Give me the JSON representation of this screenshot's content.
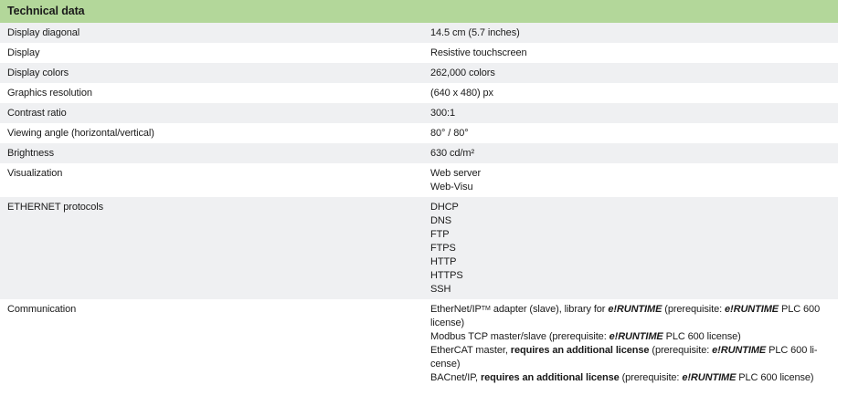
{
  "table": {
    "title": "Technical data",
    "rows": [
      {
        "label": "Display diagonal",
        "value_lines": [
          [
            {
              "t": "14.5 cm (5.7 inches)"
            }
          ]
        ]
      },
      {
        "label": "Display",
        "value_lines": [
          [
            {
              "t": "Resistive touchscreen"
            }
          ]
        ]
      },
      {
        "label": "Display colors",
        "value_lines": [
          [
            {
              "t": "262,000 colors"
            }
          ]
        ]
      },
      {
        "label": "Graphics resolution",
        "value_lines": [
          [
            {
              "t": "(640 x 480) px"
            }
          ]
        ]
      },
      {
        "label": "Contrast ratio",
        "value_lines": [
          [
            {
              "t": "300:1"
            }
          ]
        ]
      },
      {
        "label": "Viewing angle (horizontal/vertical)",
        "value_lines": [
          [
            {
              "t": "80° / 80°"
            }
          ]
        ]
      },
      {
        "label": "Brightness",
        "value_lines": [
          [
            {
              "t": "630 cd/m²"
            }
          ]
        ]
      },
      {
        "label": "Visualization",
        "value_lines": [
          [
            {
              "t": "Web server"
            }
          ],
          [
            {
              "t": "Web-Visu"
            }
          ]
        ]
      },
      {
        "label": "ETHERNET protocols",
        "value_lines": [
          [
            {
              "t": "DHCP"
            }
          ],
          [
            {
              "t": "DNS"
            }
          ],
          [
            {
              "t": "FTP"
            }
          ],
          [
            {
              "t": "FTPS"
            }
          ],
          [
            {
              "t": "HTTP"
            }
          ],
          [
            {
              "t": "HTTPS"
            }
          ],
          [
            {
              "t": "SSH"
            }
          ]
        ]
      },
      {
        "label": "Communication",
        "value_lines": [
          [
            {
              "t": "EtherNet/IP"
            },
            {
              "t": "TM",
              "style": "sup"
            },
            {
              "t": " adapter (slave), library for "
            },
            {
              "t": "e!RUNTIME",
              "style": "bold-italic"
            },
            {
              "t": " (prerequisite: "
            },
            {
              "t": "e!RUNTIME",
              "style": "bold-italic"
            },
            {
              "t": " PLC 600"
            }
          ],
          [
            {
              "t": "license)"
            }
          ],
          [
            {
              "t": "Modbus TCP master/slave (prerequisite: "
            },
            {
              "t": "e!RUNTIME",
              "style": "bold-italic"
            },
            {
              "t": " PLC 600 license)"
            }
          ],
          [
            {
              "t": "EtherCAT master, "
            },
            {
              "t": "requires an additional license",
              "style": "bold"
            },
            {
              "t": " (prerequisite: "
            },
            {
              "t": "e!RUNTIME",
              "style": "bold-italic"
            },
            {
              "t": " PLC 600 li-"
            }
          ],
          [
            {
              "t": "cense)"
            }
          ],
          [
            {
              "t": "BACnet/IP, "
            },
            {
              "t": "requires an additional license",
              "style": "bold"
            },
            {
              "t": " (prerequisite: "
            },
            {
              "t": "e!RUNTIME",
              "style": "bold-italic"
            },
            {
              "t": " PLC 600 license)"
            }
          ]
        ]
      }
    ]
  },
  "colors": {
    "header_bg": "#b3d79a",
    "row_shaded_bg": "#eff0f2",
    "row_plain_bg": "#ffffff",
    "text": "#1a1a1a"
  }
}
